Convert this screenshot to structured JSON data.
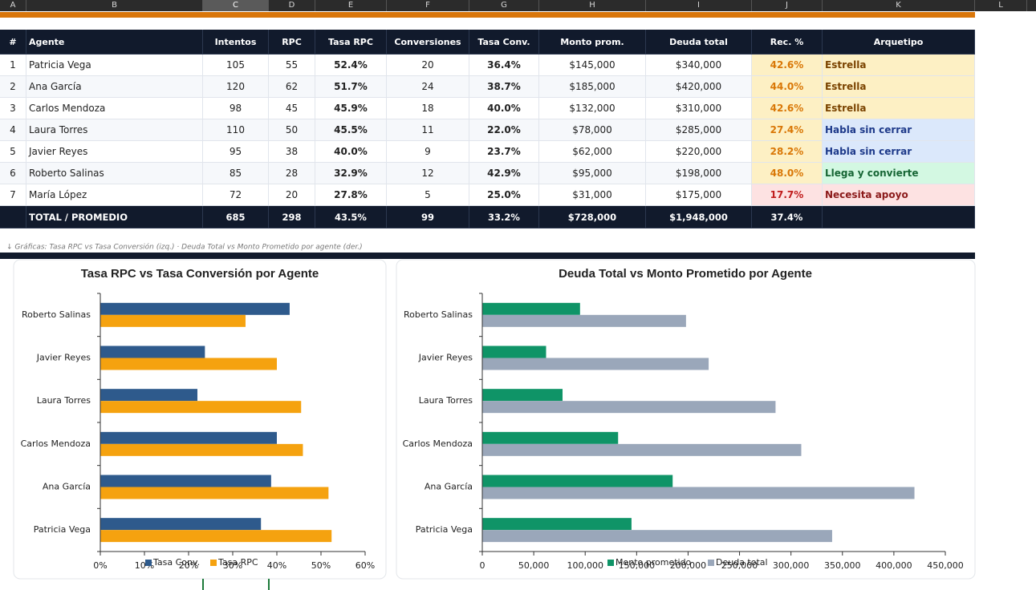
{
  "sheet": {
    "columns": [
      "A",
      "B",
      "C",
      "D",
      "E",
      "F",
      "G",
      "H",
      "I",
      "J",
      "K",
      "L"
    ],
    "header": [
      "#",
      "Agente",
      "Intentos",
      "RPC",
      "Tasa RPC",
      "Conversiones",
      "Tasa Conv.",
      "Monto prom.",
      "Deuda total",
      "Rec. %",
      "Arquetipo"
    ],
    "rows": [
      [
        "1",
        "Patricia Vega",
        "105",
        "55",
        "52.4%",
        "20",
        "36.4%",
        "$145,000",
        "$340,000",
        "42.6%",
        "Estrella"
      ],
      [
        "2",
        "Ana García",
        "120",
        "62",
        "51.7%",
        "24",
        "38.7%",
        "$185,000",
        "$420,000",
        "44.0%",
        "Estrella"
      ],
      [
        "3",
        "Carlos Mendoza",
        "98",
        "45",
        "45.9%",
        "18",
        "40.0%",
        "$132,000",
        "$310,000",
        "42.6%",
        "Estrella"
      ],
      [
        "4",
        "Laura Torres",
        "110",
        "50",
        "45.5%",
        "11",
        "22.0%",
        "$78,000",
        "$285,000",
        "27.4%",
        "Habla sin cerrar"
      ],
      [
        "5",
        "Javier Reyes",
        "95",
        "38",
        "40.0%",
        "9",
        "23.7%",
        "$62,000",
        "$220,000",
        "28.2%",
        "Habla sin cerrar"
      ],
      [
        "6",
        "Roberto Salinas",
        "85",
        "28",
        "32.9%",
        "12",
        "42.9%",
        "$95,000",
        "$198,000",
        "48.0%",
        "Llega y convierte"
      ],
      [
        "7",
        "María López",
        "72",
        "20",
        "27.8%",
        "5",
        "25.0%",
        "$31,000",
        "$175,000",
        "17.7%",
        "Necesita apoyo"
      ]
    ],
    "total": [
      "TOTAL / PROMEDIO",
      "685",
      "298",
      "43.5%",
      "99",
      "33.2%",
      "$728,000",
      "$1,948,000",
      "37.4%"
    ],
    "note": "↓ Gráficas: Tasa RPC vs Tasa Conversión (izq.) · Deuda Total vs Monto Prometido por agente (der.)"
  },
  "chart_data": [
    {
      "type": "bar",
      "orientation": "horizontal",
      "title": "Tasa RPC vs Tasa Conversión por Agente",
      "categories": [
        "Patricia Vega",
        "Ana García",
        "Carlos Mendoza",
        "Laura Torres",
        "Javier Reyes",
        "Roberto Salinas"
      ],
      "series": [
        {
          "name": "Tasa Conv.",
          "color": "#2e5a8c",
          "values": [
            36.4,
            38.7,
            40.0,
            22.0,
            23.7,
            42.9
          ]
        },
        {
          "name": "Tasa RPC",
          "color": "#f5a20f",
          "values": [
            52.4,
            51.7,
            45.9,
            45.5,
            40.0,
            32.9
          ]
        }
      ],
      "xlim": [
        0,
        60
      ],
      "xticks": [
        {
          "value": 0,
          "label": "0%"
        },
        {
          "value": 10,
          "label": "10%"
        },
        {
          "value": 20,
          "label": "20%"
        },
        {
          "value": 30,
          "label": "30%"
        },
        {
          "value": 40,
          "label": "40%"
        },
        {
          "value": 50,
          "label": "50%"
        },
        {
          "value": 60,
          "label": "60%"
        }
      ],
      "legend": "bottom"
    },
    {
      "type": "bar",
      "orientation": "horizontal",
      "title": "Deuda Total vs Monto Prometido por Agente",
      "categories": [
        "Patricia Vega",
        "Ana García",
        "Carlos Mendoza",
        "Laura Torres",
        "Javier Reyes",
        "Roberto Salinas"
      ],
      "series": [
        {
          "name": "Monto prometido",
          "color": "#0f9467",
          "values": [
            145000,
            185000,
            132000,
            78000,
            62000,
            95000
          ]
        },
        {
          "name": "Deuda total",
          "color": "#9aa7ba",
          "values": [
            340000,
            420000,
            310000,
            285000,
            220000,
            198000
          ]
        }
      ],
      "xlim": [
        0,
        450000
      ],
      "xticks": [
        0,
        {
          "value": 50000,
          "label": "50,000"
        },
        {
          "value": 100000,
          "label": "100,000"
        },
        {
          "value": 150000,
          "label": "150,000"
        },
        {
          "value": 200000,
          "label": "200,000"
        },
        {
          "value": 250000,
          "label": "250,000"
        },
        {
          "value": 300000,
          "label": "300,000"
        },
        {
          "value": 350000,
          "label": "350,000"
        },
        {
          "value": 400000,
          "label": "400,000"
        },
        {
          "value": 450000,
          "label": "450,000"
        }
      ],
      "legend": "bottom"
    }
  ]
}
